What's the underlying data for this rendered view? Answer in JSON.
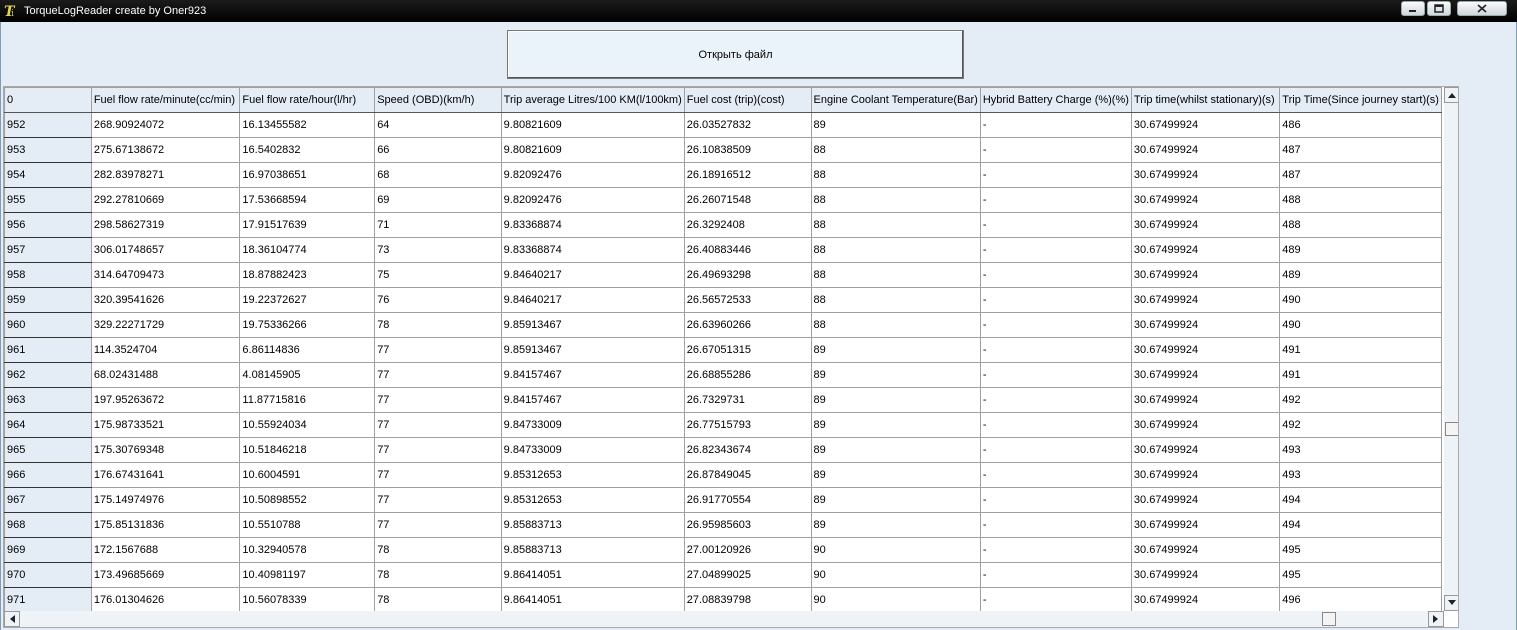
{
  "window": {
    "title": "TorqueLogReader create by Oner923",
    "icon": "app-logo-icon",
    "controls": [
      "minimize-icon",
      "maximize-icon",
      "close-icon"
    ]
  },
  "toolbar": {
    "open_file_label": "Открыть файл"
  },
  "grid": {
    "columns": [
      "0",
      "Fuel flow rate/minute(cc/min)",
      "Fuel flow rate/hour(l/hr)",
      "Speed (OBD)(km/h)",
      "Trip average Litres/100 KM(l/100km)",
      "Fuel cost (trip)(cost)",
      "Engine Coolant Temperature(Bar)",
      "Hybrid Battery Charge (%)(%)",
      "Trip time(whilst stationary)(s)",
      "Trip Time(Since journey start)(s)"
    ],
    "rows": [
      [
        "952",
        "268.90924072",
        "16.13455582",
        "64",
        "9.80821609",
        "26.03527832",
        "89",
        "-",
        "30.67499924",
        "486"
      ],
      [
        "953",
        "275.67138672",
        "16.5402832",
        "66",
        "9.80821609",
        "26.10838509",
        "88",
        "-",
        "30.67499924",
        "487"
      ],
      [
        "954",
        "282.83978271",
        "16.97038651",
        "68",
        "9.82092476",
        "26.18916512",
        "88",
        "-",
        "30.67499924",
        "487"
      ],
      [
        "955",
        "292.27810669",
        "17.53668594",
        "69",
        "9.82092476",
        "26.26071548",
        "88",
        "-",
        "30.67499924",
        "488"
      ],
      [
        "956",
        "298.58627319",
        "17.91517639",
        "71",
        "9.83368874",
        "26.3292408",
        "88",
        "-",
        "30.67499924",
        "488"
      ],
      [
        "957",
        "306.01748657",
        "18.36104774",
        "73",
        "9.83368874",
        "26.40883446",
        "88",
        "-",
        "30.67499924",
        "489"
      ],
      [
        "958",
        "314.64709473",
        "18.87882423",
        "75",
        "9.84640217",
        "26.49693298",
        "88",
        "-",
        "30.67499924",
        "489"
      ],
      [
        "959",
        "320.39541626",
        "19.22372627",
        "76",
        "9.84640217",
        "26.56572533",
        "88",
        "-",
        "30.67499924",
        "490"
      ],
      [
        "960",
        "329.22271729",
        "19.75336266",
        "78",
        "9.85913467",
        "26.63960266",
        "88",
        "-",
        "30.67499924",
        "490"
      ],
      [
        "961",
        "114.3524704",
        "6.86114836",
        "77",
        "9.85913467",
        "26.67051315",
        "89",
        "-",
        "30.67499924",
        "491"
      ],
      [
        "962",
        "68.02431488",
        "4.08145905",
        "77",
        "9.84157467",
        "26.68855286",
        "89",
        "-",
        "30.67499924",
        "491"
      ],
      [
        "963",
        "197.95263672",
        "11.87715816",
        "77",
        "9.84157467",
        "26.7329731",
        "89",
        "-",
        "30.67499924",
        "492"
      ],
      [
        "964",
        "175.98733521",
        "10.55924034",
        "77",
        "9.84733009",
        "26.77515793",
        "89",
        "-",
        "30.67499924",
        "492"
      ],
      [
        "965",
        "175.30769348",
        "10.51846218",
        "77",
        "9.84733009",
        "26.82343674",
        "89",
        "-",
        "30.67499924",
        "493"
      ],
      [
        "966",
        "176.67431641",
        "10.6004591",
        "77",
        "9.85312653",
        "26.87849045",
        "89",
        "-",
        "30.67499924",
        "493"
      ],
      [
        "967",
        "175.14974976",
        "10.50898552",
        "77",
        "9.85312653",
        "26.91770554",
        "89",
        "-",
        "30.67499924",
        "494"
      ],
      [
        "968",
        "175.85131836",
        "10.5510788",
        "77",
        "9.85883713",
        "26.95985603",
        "89",
        "-",
        "30.67499924",
        "494"
      ],
      [
        "969",
        "172.1567688",
        "10.32940578",
        "78",
        "9.85883713",
        "27.00120926",
        "90",
        "-",
        "30.67499924",
        "495"
      ],
      [
        "970",
        "173.49685669",
        "10.40981197",
        "78",
        "9.86414051",
        "27.04899025",
        "90",
        "-",
        "30.67499924",
        "495"
      ],
      [
        "971",
        "176.01304626",
        "10.56078339",
        "78",
        "9.86414051",
        "27.08839798",
        "90",
        "-",
        "30.67499924",
        "496"
      ]
    ]
  },
  "scrollbars": {
    "vertical": {
      "up": "scroll-up-icon",
      "down": "scroll-down-icon"
    },
    "horizontal": {
      "left": "scroll-left-icon",
      "right": "scroll-right-icon"
    }
  }
}
